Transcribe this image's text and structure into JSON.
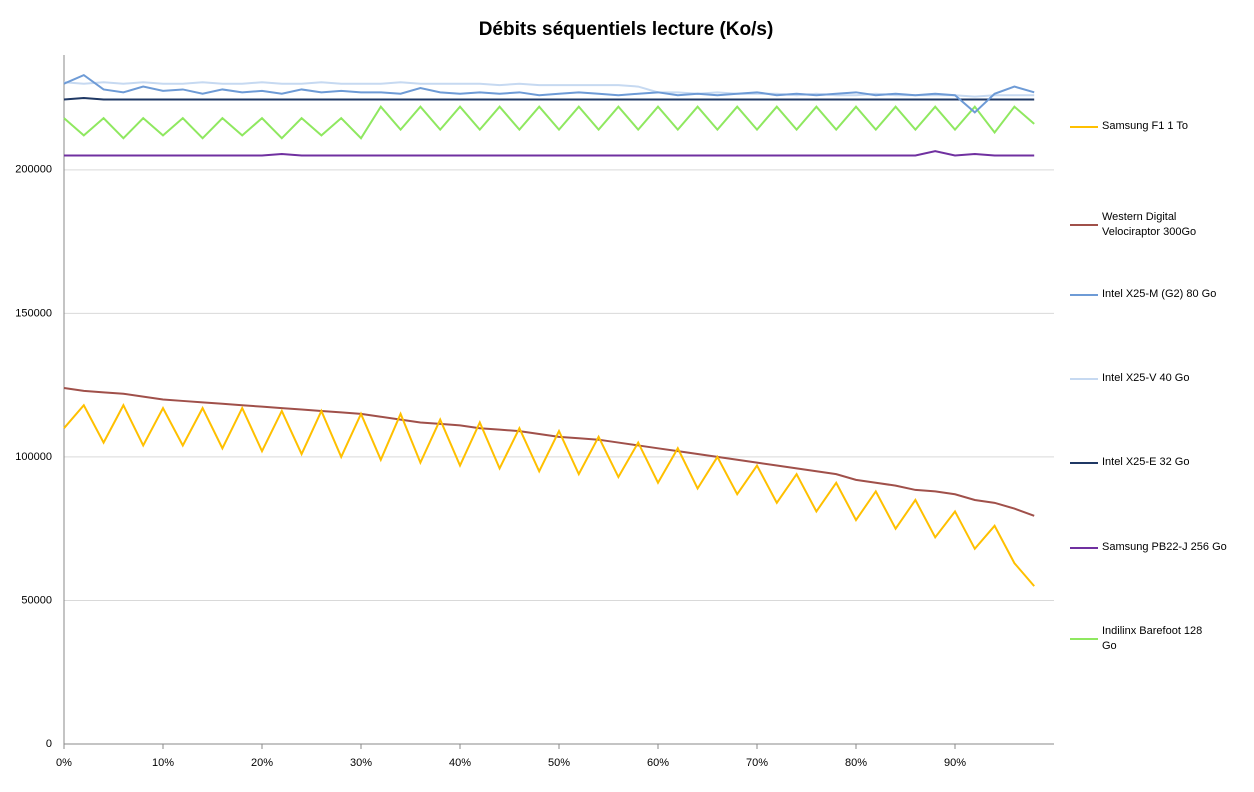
{
  "chart_data": {
    "type": "line",
    "title": "Débits séquentiels lecture (Ko/s)",
    "x": [
      0,
      2,
      4,
      6,
      8,
      10,
      12,
      14,
      16,
      18,
      20,
      22,
      24,
      26,
      28,
      30,
      32,
      34,
      36,
      38,
      40,
      42,
      44,
      46,
      48,
      50,
      52,
      54,
      56,
      58,
      60,
      62,
      64,
      66,
      68,
      70,
      72,
      74,
      76,
      78,
      80,
      82,
      84,
      86,
      88,
      90,
      92,
      94,
      96,
      98
    ],
    "xlim": [
      0,
      100
    ],
    "xticks": [
      {
        "value": 0,
        "label": "0%"
      },
      {
        "value": 10,
        "label": "10%"
      },
      {
        "value": 20,
        "label": "20%"
      },
      {
        "value": 30,
        "label": "30%"
      },
      {
        "value": 40,
        "label": "40%"
      },
      {
        "value": 50,
        "label": "50%"
      },
      {
        "value": 60,
        "label": "60%"
      },
      {
        "value": 70,
        "label": "70%"
      },
      {
        "value": 80,
        "label": "80%"
      },
      {
        "value": 90,
        "label": "90%"
      }
    ],
    "ylim": [
      0,
      240000
    ],
    "yticks": [
      0,
      50000,
      100000,
      150000,
      200000
    ],
    "grid": true,
    "legend": "right",
    "series": [
      {
        "name": "Samsung F1 1 To",
        "color": "#ffc000",
        "values": [
          110000,
          118000,
          105000,
          118000,
          104000,
          117000,
          104000,
          117000,
          103000,
          117000,
          102000,
          116000,
          101000,
          116000,
          100000,
          115000,
          99000,
          115000,
          98000,
          113000,
          97000,
          112000,
          96000,
          110000,
          95000,
          109000,
          94000,
          107000,
          93000,
          105000,
          91000,
          103000,
          89000,
          100000,
          87000,
          97000,
          84000,
          94000,
          81000,
          91000,
          78000,
          88000,
          75000,
          85000,
          72000,
          81000,
          68000,
          76000,
          63000,
          55000
        ]
      },
      {
        "name": "Western Digital Velociraptor 300Go",
        "color": "#a0504a",
        "values": [
          124000,
          123000,
          122500,
          122000,
          121000,
          120000,
          119500,
          119000,
          118500,
          118000,
          117500,
          117000,
          116500,
          116000,
          115500,
          115000,
          114000,
          113000,
          112000,
          111500,
          111000,
          110000,
          109500,
          109000,
          108000,
          107000,
          106500,
          106000,
          105000,
          104000,
          103000,
          102000,
          101000,
          100000,
          99000,
          98000,
          97000,
          96000,
          95000,
          94000,
          92000,
          91000,
          90000,
          88500,
          88000,
          87000,
          85000,
          84000,
          82000,
          79500
        ]
      },
      {
        "name": "Intel X25-M (G2) 80 Go",
        "color": "#6e9bd6",
        "values": [
          230000,
          233000,
          228000,
          227000,
          229000,
          227500,
          228000,
          226500,
          228000,
          227000,
          227500,
          226500,
          228000,
          227000,
          227500,
          227000,
          227000,
          226500,
          228500,
          227000,
          226500,
          227000,
          226500,
          227000,
          226000,
          226500,
          227000,
          226500,
          226000,
          226500,
          227000,
          226000,
          226500,
          226000,
          226500,
          227000,
          226000,
          226500,
          226000,
          226500,
          227000,
          226000,
          226500,
          226000,
          226500,
          226000,
          220000,
          226500,
          229000,
          227000
        ]
      },
      {
        "name": "Intel X25-V 40 Go",
        "color": "#c6d9f1",
        "values": [
          230500,
          230000,
          230500,
          230000,
          230500,
          230000,
          230000,
          230500,
          230000,
          230000,
          230500,
          230000,
          230000,
          230500,
          230000,
          230000,
          230000,
          230500,
          230000,
          230000,
          230000,
          230000,
          229500,
          230000,
          229500,
          229500,
          229500,
          229500,
          229500,
          229000,
          227000,
          227000,
          226500,
          227000,
          226500,
          226500,
          226500,
          226000,
          226500,
          226000,
          226000,
          226500,
          226000,
          226000,
          226000,
          226000,
          225500,
          226000,
          226000,
          226000
        ]
      },
      {
        "name": "Intel X25-E 32 Go",
        "color": "#1f3864",
        "values": [
          224500,
          225000,
          224500,
          224500,
          224500,
          224500,
          224500,
          224500,
          224500,
          224500,
          224500,
          224500,
          224500,
          224500,
          224500,
          224500,
          224500,
          224500,
          224500,
          224500,
          224500,
          224500,
          224500,
          224500,
          224500,
          224500,
          224500,
          224500,
          224500,
          224500,
          224500,
          224500,
          224500,
          224500,
          224500,
          224500,
          224500,
          224500,
          224500,
          224500,
          224500,
          224500,
          224500,
          224500,
          224500,
          224500,
          224500,
          224500,
          224500,
          224500
        ]
      },
      {
        "name": "Samsung PB22-J 256 Go",
        "color": "#7030a0",
        "values": [
          205000,
          205000,
          205000,
          205000,
          205000,
          205000,
          205000,
          205000,
          205000,
          205000,
          205000,
          205500,
          205000,
          205000,
          205000,
          205000,
          205000,
          205000,
          205000,
          205000,
          205000,
          205000,
          205000,
          205000,
          205000,
          205000,
          205000,
          205000,
          205000,
          205000,
          205000,
          205000,
          205000,
          205000,
          205000,
          205000,
          205000,
          205000,
          205000,
          205000,
          205000,
          205000,
          205000,
          205000,
          206500,
          205000,
          205500,
          205000,
          205000,
          205000
        ]
      },
      {
        "name": "Indilinx Barefoot 128 Go",
        "color": "#8fe860",
        "values": [
          218000,
          212000,
          218000,
          211000,
          218000,
          212000,
          218000,
          211000,
          218000,
          212000,
          218000,
          211000,
          218000,
          212000,
          218000,
          211000,
          222000,
          214000,
          222000,
          214000,
          222000,
          214000,
          222000,
          214000,
          222000,
          214000,
          222000,
          214000,
          222000,
          214000,
          222000,
          214000,
          222000,
          214000,
          222000,
          214000,
          222000,
          214000,
          222000,
          214000,
          222000,
          214000,
          222000,
          214000,
          222000,
          214000,
          222000,
          213000,
          222000,
          216000
        ]
      }
    ]
  }
}
